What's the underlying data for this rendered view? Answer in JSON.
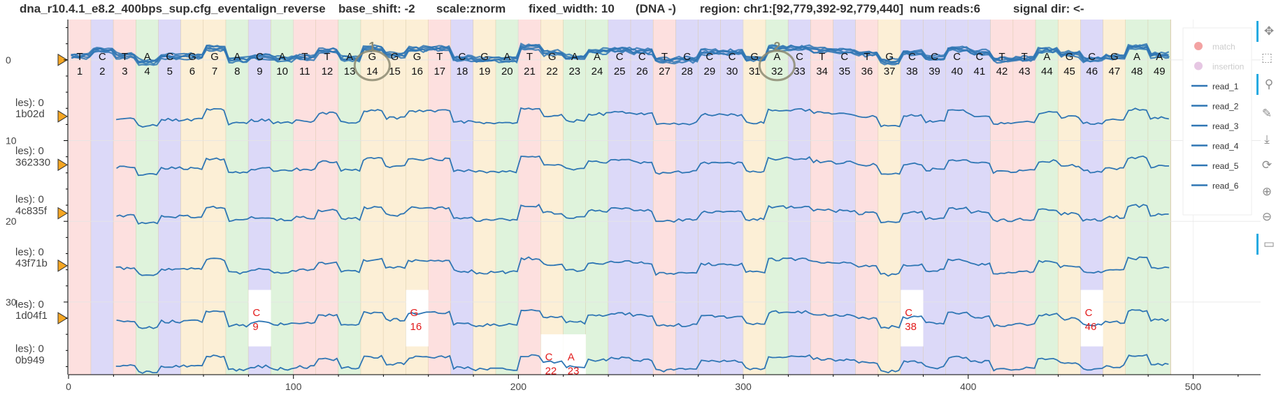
{
  "header": {
    "file": "dna_r10.4.1_e8.2_400bps_sup.cfg_eventalign_reverse",
    "base_shift": "base_shift: -2",
    "scale": "scale:znorm",
    "fixed_width": "fixed_width: 10",
    "strand": "(DNA -)",
    "region": "region: chr1:[92,779,392-92,779,440]",
    "num_reads": "num reads:6",
    "signal_dir": "signal dir: <-"
  },
  "toolbar": {
    "icons": [
      "pan-icon",
      "box-zoom-icon",
      "wheel-zoom-icon",
      "freehand-draw-icon",
      "save-icon",
      "reset-icon",
      "zoom-in-icon",
      "zoom-out-icon",
      "hover-icon"
    ]
  },
  "colors": {
    "A": "#dff3dc",
    "C": "#dcd9f8",
    "G": "#fcefd6",
    "T": "#fde0df",
    "read": "#2f76b4",
    "deletion_text": "#e21b1b",
    "match_dot": "#f3a3a3",
    "insertion_dot": "#e6c7e3",
    "marker": "#f5a623",
    "annotation": "#8c8a72"
  },
  "chart_data": {
    "type": "line",
    "title": "",
    "xlabel": "",
    "ylabel": "",
    "xlim": [
      0,
      530
    ],
    "ylim": [
      39,
      -5
    ],
    "x_ticks": [
      0,
      100,
      200,
      300,
      400,
      500
    ],
    "y_ticks": [
      0,
      10,
      20,
      30
    ],
    "grid": true,
    "base_width": 10,
    "bases": [
      "T",
      "C",
      "T",
      "A",
      "C",
      "G",
      "G",
      "A",
      "C",
      "A",
      "T",
      "T",
      "A",
      "G",
      "G",
      "G",
      "T",
      "C",
      "G",
      "A",
      "T",
      "G",
      "A",
      "A",
      "C",
      "C",
      "T",
      "C",
      "C",
      "C",
      "G",
      "A",
      "C",
      "T",
      "C",
      "T",
      "G",
      "C",
      "C",
      "C",
      "C",
      "T",
      "T",
      "A",
      "G",
      "C",
      "G",
      "A",
      "A"
    ],
    "read_offsets": [
      7,
      13,
      19,
      25.5,
      32,
      37.5
    ],
    "read_labels": [
      "1b02d",
      "362330",
      "4c835f",
      "43f71b",
      "1d04f1",
      "0b949"
    ],
    "read_label_prefix": "les): 0",
    "series": [
      {
        "name": "read_1"
      },
      {
        "name": "read_2"
      },
      {
        "name": "read_3"
      },
      {
        "name": "read_4"
      },
      {
        "name": "read_5"
      },
      {
        "name": "read_6"
      }
    ],
    "legend_items": [
      "match",
      "insertion",
      "read_1",
      "read_2",
      "read_3",
      "read_4",
      "read_5",
      "read_6"
    ],
    "legend_position": "top-right",
    "deletions": [
      {
        "read": 5,
        "base": "C",
        "pos": 9
      },
      {
        "read": 5,
        "base": "G",
        "pos": 16
      },
      {
        "read": 5,
        "base": "C",
        "pos": 38
      },
      {
        "read": 5,
        "base": "C",
        "pos": 46
      },
      {
        "read": 6,
        "base": "C",
        "pos": 22
      },
      {
        "read": 6,
        "base": "A",
        "pos": 23
      }
    ],
    "annotations": [
      {
        "text": "1",
        "pos": 14
      },
      {
        "text": "2",
        "pos": 32
      }
    ]
  }
}
